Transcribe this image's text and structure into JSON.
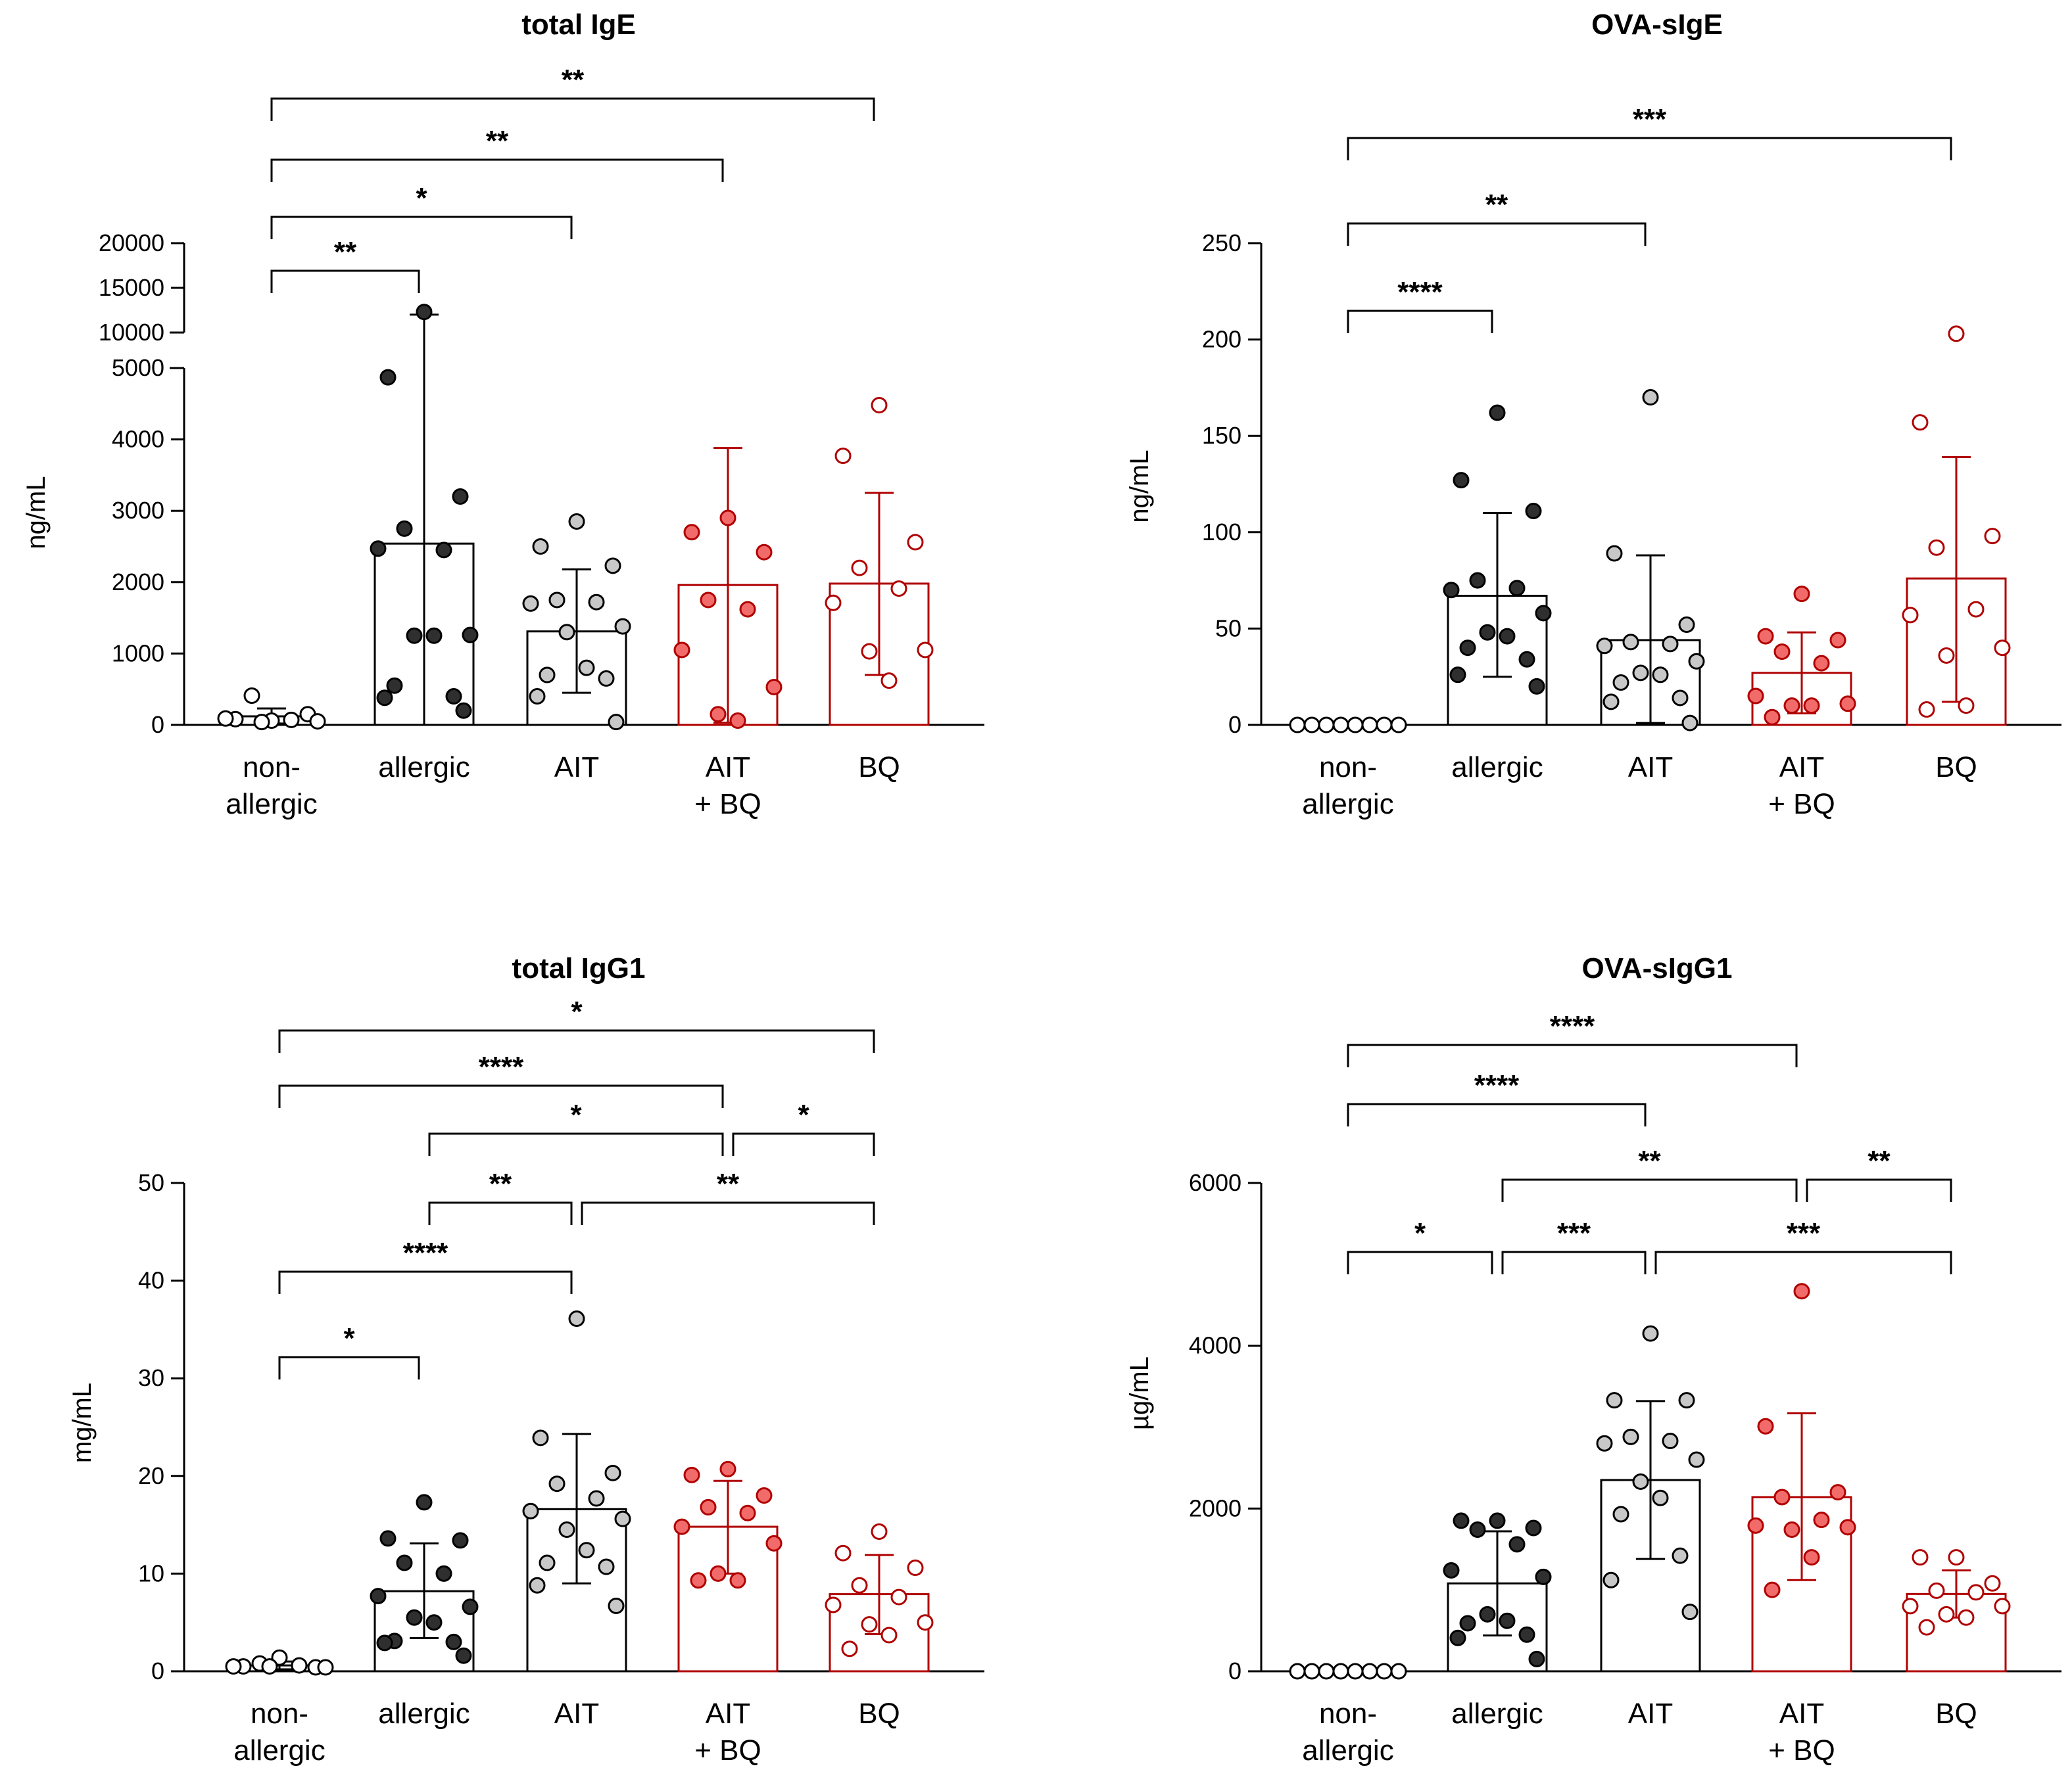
{
  "colors": {
    "black": "#000000",
    "dark_fill": "#2f2f2f",
    "light_fill": "#c8c8c8",
    "red": "#b00000",
    "red_fill": "#f26b6b",
    "white": "#ffffff"
  },
  "chart_data": [
    {
      "type": "bar",
      "title": "total IgE",
      "ylabel": "ng/mL",
      "axis": "broken",
      "ylim": [
        0,
        20000
      ],
      "segments": [
        {
          "range": [
            0,
            5000
          ],
          "ticks": [
            0,
            1000,
            2000,
            3000,
            4000,
            5000
          ]
        },
        {
          "range": [
            10000,
            20000
          ],
          "ticks": [
            10000,
            15000,
            20000
          ]
        }
      ],
      "categories": [
        [
          "non-",
          "allergic"
        ],
        [
          "allergic"
        ],
        [
          "AIT"
        ],
        [
          "AIT",
          "+ BQ"
        ],
        [
          "BQ"
        ]
      ],
      "groups": [
        {
          "name": "non-allergic",
          "style": "white",
          "mean": 120,
          "sd_low": 20,
          "sd_high": 230,
          "points": [
            60,
            80,
            150,
            410,
            70,
            90,
            50,
            40
          ]
        },
        {
          "name": "allergic",
          "style": "dark",
          "mean": 2540,
          "sd_low": 0,
          "sd_high": 12000,
          "points": [
            12300,
            4870,
            3200,
            2750,
            2450,
            2470,
            1260,
            1250,
            1250,
            550,
            400,
            380,
            200
          ]
        },
        {
          "name": "AIT",
          "style": "grey",
          "mean": 1310,
          "sd_low": 450,
          "sd_high": 2180,
          "points": [
            2850,
            2500,
            2230,
            1750,
            1720,
            1700,
            1380,
            1300,
            800,
            700,
            650,
            400,
            40
          ]
        },
        {
          "name": "AIT + BQ",
          "style": "red",
          "mean": 1960,
          "sd_low": 30,
          "sd_high": 3880,
          "points": [
            2900,
            2700,
            2420,
            1750,
            1620,
            1050,
            530,
            150,
            60
          ]
        },
        {
          "name": "BQ",
          "style": "redhollow",
          "mean": 1980,
          "sd_low": 700,
          "sd_high": 3250,
          "points": [
            4480,
            3770,
            2560,
            2200,
            1910,
            1710,
            1050,
            1030,
            620
          ]
        }
      ],
      "sig": [
        {
          "from": 0,
          "to": 1,
          "label": "**"
        },
        {
          "from": 0,
          "to": 2,
          "label": "*"
        },
        {
          "from": 0,
          "to": 3,
          "label": "**"
        },
        {
          "from": 0,
          "to": 4,
          "label": "**"
        }
      ]
    },
    {
      "type": "bar",
      "title": "OVA-sIgE",
      "ylabel": "ng/mL",
      "axis": "linear",
      "ylim": [
        0,
        250
      ],
      "ticks": [
        0,
        50,
        100,
        150,
        200,
        250
      ],
      "categories": [
        [
          "non-",
          "allergic"
        ],
        [
          "allergic"
        ],
        [
          "AIT"
        ],
        [
          "AIT",
          "+ BQ"
        ],
        [
          "BQ"
        ]
      ],
      "groups": [
        {
          "name": "non-allergic",
          "style": "white",
          "mean": 0,
          "sd_low": 0,
          "sd_high": 0,
          "points": [
            0,
            0,
            0,
            0,
            0,
            0,
            0,
            0
          ]
        },
        {
          "name": "allergic",
          "style": "dark",
          "mean": 67,
          "sd_low": 25,
          "sd_high": 110,
          "points": [
            162,
            127,
            111,
            75,
            71,
            70,
            58,
            48,
            46,
            40,
            34,
            26,
            20
          ]
        },
        {
          "name": "AIT",
          "style": "grey",
          "mean": 44,
          "sd_low": 1,
          "sd_high": 88,
          "points": [
            170,
            89,
            52,
            43,
            42,
            41,
            33,
            27,
            26,
            22,
            14,
            12,
            1
          ]
        },
        {
          "name": "AIT + BQ",
          "style": "red",
          "mean": 27,
          "sd_low": 6,
          "sd_high": 48,
          "points": [
            68,
            46,
            44,
            38,
            32,
            15,
            11,
            10,
            10,
            4
          ]
        },
        {
          "name": "BQ",
          "style": "redhollow",
          "mean": 76,
          "sd_low": 12,
          "sd_high": 139,
          "points": [
            203,
            157,
            98,
            92,
            60,
            57,
            40,
            36,
            10,
            8
          ]
        }
      ],
      "sig": [
        {
          "from": 0,
          "to": 1,
          "label": "****"
        },
        {
          "from": 0,
          "to": 2,
          "label": "**"
        },
        {
          "from": 0,
          "to": 4,
          "label": "***"
        }
      ]
    },
    {
      "type": "bar",
      "title": "total IgG1",
      "ylabel": "mg/mL",
      "axis": "linear",
      "ylim": [
        0,
        50
      ],
      "ticks": [
        0,
        10,
        20,
        30,
        40,
        50
      ],
      "categories": [
        [
          "non-",
          "allergic"
        ],
        [
          "allergic"
        ],
        [
          "AIT"
        ],
        [
          "AIT",
          "+ BQ"
        ],
        [
          "BQ"
        ]
      ],
      "groups": [
        {
          "name": "non-allergic",
          "style": "white",
          "mean": 0.6,
          "sd_low": 0.2,
          "sd_high": 1.0,
          "points": [
            1.4,
            0.5,
            0.4,
            0.8,
            0.6,
            0.5,
            0.4,
            0.5
          ]
        },
        {
          "name": "allergic",
          "style": "dark",
          "mean": 8.2,
          "sd_low": 3.4,
          "sd_high": 13.1,
          "points": [
            17.3,
            13.6,
            13.4,
            11.1,
            10.0,
            7.7,
            6.6,
            5.5,
            5.0,
            3.1,
            3.0,
            2.9,
            1.6
          ]
        },
        {
          "name": "AIT",
          "style": "grey",
          "mean": 16.6,
          "sd_low": 9.0,
          "sd_high": 24.3,
          "points": [
            36.1,
            23.9,
            20.3,
            19.2,
            17.7,
            16.4,
            15.6,
            14.5,
            12.4,
            11.1,
            10.7,
            8.8,
            6.7
          ]
        },
        {
          "name": "AIT + BQ",
          "style": "red",
          "mean": 14.8,
          "sd_low": 10.0,
          "sd_high": 19.5,
          "points": [
            20.7,
            20.1,
            18.0,
            16.8,
            16.2,
            14.8,
            13.1,
            10.0,
            9.3,
            9.3
          ]
        },
        {
          "name": "BQ",
          "style": "redhollow",
          "mean": 7.9,
          "sd_low": 3.8,
          "sd_high": 11.9,
          "points": [
            14.3,
            12.1,
            10.6,
            8.8,
            7.6,
            6.8,
            5.0,
            4.8,
            3.7,
            2.3
          ]
        }
      ],
      "sig": [
        {
          "from": 0,
          "to": 1,
          "label": "*"
        },
        {
          "from": 0,
          "to": 2,
          "label": "****"
        },
        {
          "from": 1,
          "to": 2,
          "label": "**"
        },
        {
          "from": 2,
          "to": 4,
          "label": "**"
        },
        {
          "from": 1,
          "to": 3,
          "label": "*"
        },
        {
          "from": 3,
          "to": 4,
          "label": "*"
        },
        {
          "from": 0,
          "to": 3,
          "label": "****"
        },
        {
          "from": 0,
          "to": 4,
          "label": "*"
        }
      ]
    },
    {
      "type": "bar",
      "title": "OVA-sIgG1",
      "ylabel": "µg/mL",
      "axis": "linear",
      "ylim": [
        0,
        6000
      ],
      "ticks": [
        0,
        2000,
        4000,
        6000
      ],
      "categories": [
        [
          "non-",
          "allergic"
        ],
        [
          "allergic"
        ],
        [
          "AIT"
        ],
        [
          "AIT",
          "+ BQ"
        ],
        [
          "BQ"
        ]
      ],
      "groups": [
        {
          "name": "non-allergic",
          "style": "white",
          "mean": 0,
          "sd_low": 0,
          "sd_high": 0,
          "points": [
            0,
            0,
            0,
            0,
            0,
            0,
            0,
            0
          ]
        },
        {
          "name": "allergic",
          "style": "dark",
          "mean": 1080,
          "sd_low": 440,
          "sd_high": 1720,
          "points": [
            1850,
            1850,
            1760,
            1740,
            1560,
            1240,
            1160,
            700,
            620,
            590,
            450,
            410,
            150
          ]
        },
        {
          "name": "AIT",
          "style": "grey",
          "mean": 2350,
          "sd_low": 1380,
          "sd_high": 3320,
          "points": [
            4150,
            3330,
            3330,
            2880,
            2830,
            2800,
            2600,
            2330,
            2130,
            1930,
            1420,
            1120,
            730
          ]
        },
        {
          "name": "AIT + BQ",
          "style": "red",
          "mean": 2140,
          "sd_low": 1120,
          "sd_high": 3170,
          "points": [
            4670,
            3010,
            2200,
            2140,
            1860,
            1790,
            1770,
            1740,
            1400,
            1000
          ]
        },
        {
          "name": "BQ",
          "style": "redhollow",
          "mean": 950,
          "sd_low": 660,
          "sd_high": 1240,
          "points": [
            1400,
            1400,
            1080,
            990,
            970,
            800,
            800,
            700,
            660,
            540
          ]
        }
      ],
      "sig": [
        {
          "from": 0,
          "to": 1,
          "label": "*"
        },
        {
          "from": 1,
          "to": 2,
          "label": "***"
        },
        {
          "from": 2,
          "to": 4,
          "label": "***"
        },
        {
          "from": 1,
          "to": 3,
          "label": "**"
        },
        {
          "from": 3,
          "to": 4,
          "label": "**"
        },
        {
          "from": 0,
          "to": 2,
          "label": "****"
        },
        {
          "from": 0,
          "to": 3,
          "label": "****"
        }
      ]
    }
  ]
}
